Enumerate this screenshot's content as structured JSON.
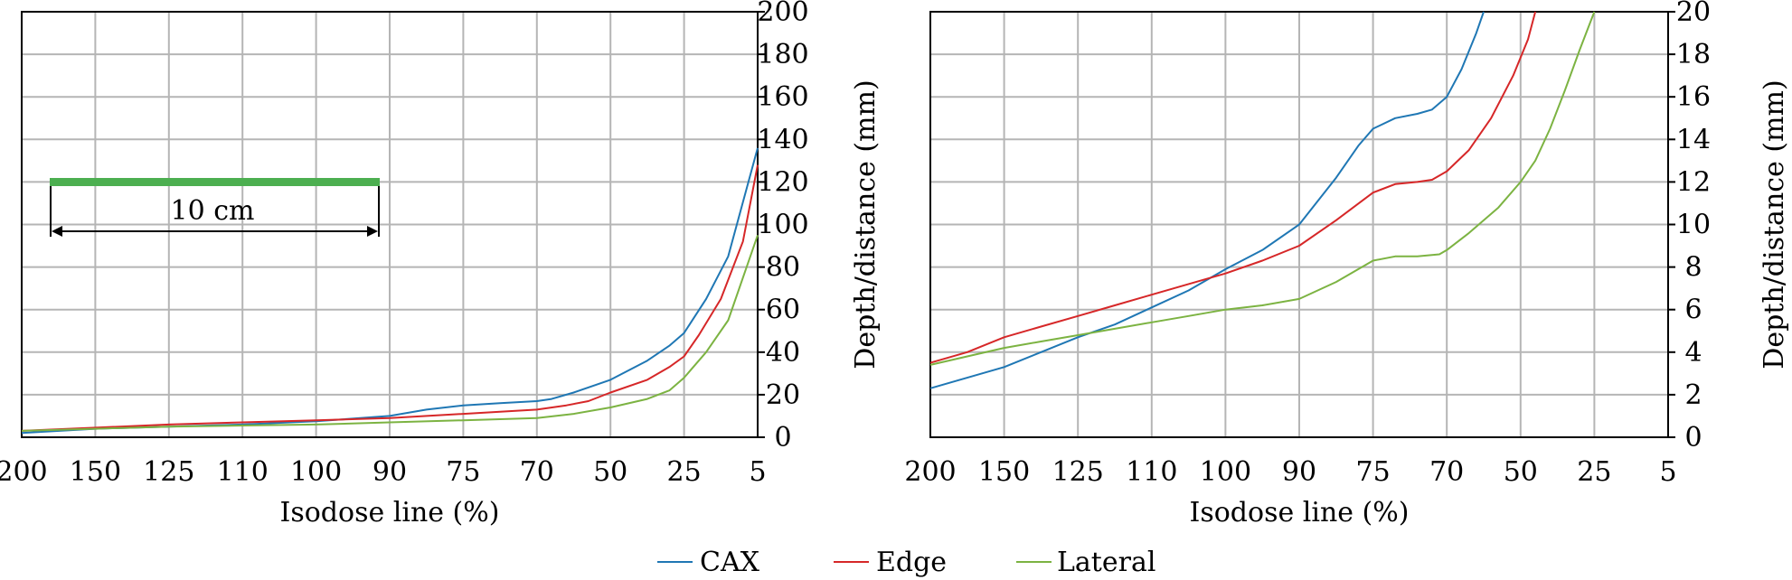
{
  "legend": [
    {
      "name": "CAX",
      "color": "#1f77b4"
    },
    {
      "name": "Edge",
      "color": "#d62728"
    },
    {
      "name": "Lateral",
      "color": "#7cb342"
    }
  ],
  "annotation": {
    "label": "10 cm",
    "bar_color": "#4caf50"
  },
  "chart_data": [
    {
      "type": "line",
      "xlabel": "Isodose line (%)",
      "ylabel": "Depth/distance (mm)",
      "categories": [
        "200",
        "150",
        "125",
        "110",
        "100",
        "90",
        "75",
        "70",
        "50",
        "25",
        "5"
      ],
      "ylim": [
        0,
        200
      ],
      "yticks": [
        "0",
        "20",
        "40",
        "60",
        "80",
        "100",
        "120",
        "140",
        "160",
        "180",
        "200"
      ],
      "grid": true,
      "y_axis_side": "right",
      "series": [
        {
          "name": "CAX",
          "points": [
            [
              0,
              2
            ],
            [
              1,
              4
            ],
            [
              2,
              5
            ],
            [
              3,
              6
            ],
            [
              4,
              7.5
            ],
            [
              5,
              10
            ],
            [
              5.5,
              13
            ],
            [
              6,
              15
            ],
            [
              6.5,
              16
            ],
            [
              7,
              17
            ],
            [
              7.2,
              18
            ],
            [
              7.5,
              21
            ],
            [
              8,
              27
            ],
            [
              8.5,
              36
            ],
            [
              8.8,
              43
            ],
            [
              9,
              49
            ],
            [
              9.3,
              65
            ],
            [
              9.6,
              85
            ],
            [
              10,
              136
            ]
          ]
        },
        {
          "name": "Edge",
          "points": [
            [
              0,
              3
            ],
            [
              1,
              4.5
            ],
            [
              2,
              6
            ],
            [
              3,
              7
            ],
            [
              4,
              8
            ],
            [
              5,
              9
            ],
            [
              6,
              11
            ],
            [
              7,
              13
            ],
            [
              7.4,
              15
            ],
            [
              7.7,
              17
            ],
            [
              8,
              21
            ],
            [
              8.5,
              27
            ],
            [
              8.8,
              33
            ],
            [
              9,
              38
            ],
            [
              9.2,
              48
            ],
            [
              9.5,
              65
            ],
            [
              9.8,
              92
            ],
            [
              10,
              128
            ]
          ]
        },
        {
          "name": "Lateral",
          "points": [
            [
              0,
              3
            ],
            [
              1,
              4
            ],
            [
              2,
              5
            ],
            [
              3,
              5.5
            ],
            [
              4,
              6
            ],
            [
              5,
              7
            ],
            [
              6,
              8
            ],
            [
              7,
              9
            ],
            [
              7.5,
              11
            ],
            [
              8,
              14
            ],
            [
              8.5,
              18
            ],
            [
              8.8,
              22
            ],
            [
              9,
              28
            ],
            [
              9.3,
              40
            ],
            [
              9.6,
              55
            ],
            [
              10,
              95
            ]
          ]
        }
      ]
    },
    {
      "type": "line",
      "xlabel": "Isodose line (%)",
      "ylabel": "Depth/distance (mm)",
      "categories": [
        "200",
        "150",
        "125",
        "110",
        "100",
        "90",
        "75",
        "70",
        "50",
        "25",
        "5"
      ],
      "ylim": [
        0,
        20
      ],
      "yticks": [
        "0",
        "2",
        "4",
        "6",
        "8",
        "10",
        "12",
        "14",
        "16",
        "18",
        "20"
      ],
      "grid": true,
      "y_axis_side": "right",
      "series": [
        {
          "name": "CAX",
          "points": [
            [
              0,
              2.3
            ],
            [
              0.5,
              2.8
            ],
            [
              1,
              3.3
            ],
            [
              1.5,
              4
            ],
            [
              2,
              4.7
            ],
            [
              2.5,
              5.3
            ],
            [
              3,
              6.1
            ],
            [
              3.5,
              6.9
            ],
            [
              4,
              7.9
            ],
            [
              4.5,
              8.8
            ],
            [
              5,
              10
            ],
            [
              5.5,
              12.2
            ],
            [
              5.8,
              13.7
            ],
            [
              6,
              14.5
            ],
            [
              6.3,
              15
            ],
            [
              6.6,
              15.2
            ],
            [
              6.8,
              15.4
            ],
            [
              7,
              16
            ],
            [
              7.2,
              17.3
            ],
            [
              7.4,
              19
            ],
            [
              7.5,
              20
            ]
          ]
        },
        {
          "name": "Edge",
          "points": [
            [
              0,
              3.5
            ],
            [
              0.5,
              4
            ],
            [
              1,
              4.7
            ],
            [
              1.5,
              5.2
            ],
            [
              2,
              5.7
            ],
            [
              2.5,
              6.2
            ],
            [
              3,
              6.7
            ],
            [
              3.5,
              7.2
            ],
            [
              4,
              7.7
            ],
            [
              4.5,
              8.3
            ],
            [
              5,
              9
            ],
            [
              5.5,
              10.2
            ],
            [
              6,
              11.5
            ],
            [
              6.3,
              11.9
            ],
            [
              6.6,
              12
            ],
            [
              6.8,
              12.1
            ],
            [
              7,
              12.5
            ],
            [
              7.3,
              13.5
            ],
            [
              7.6,
              15
            ],
            [
              7.9,
              17
            ],
            [
              8.1,
              18.7
            ],
            [
              8.2,
              20
            ]
          ]
        },
        {
          "name": "Lateral",
          "points": [
            [
              0,
              3.4
            ],
            [
              0.5,
              3.8
            ],
            [
              1,
              4.2
            ],
            [
              1.5,
              4.5
            ],
            [
              2,
              4.8
            ],
            [
              2.5,
              5.1
            ],
            [
              3,
              5.4
            ],
            [
              3.5,
              5.7
            ],
            [
              4,
              6
            ],
            [
              4.5,
              6.2
            ],
            [
              5,
              6.5
            ],
            [
              5.5,
              7.3
            ],
            [
              6,
              8.3
            ],
            [
              6.3,
              8.5
            ],
            [
              6.6,
              8.5
            ],
            [
              6.9,
              8.6
            ],
            [
              7,
              8.8
            ],
            [
              7.3,
              9.6
            ],
            [
              7.7,
              10.8
            ],
            [
              8,
              12
            ],
            [
              8.2,
              13
            ],
            [
              8.4,
              14.5
            ],
            [
              8.6,
              16.3
            ],
            [
              8.8,
              18.2
            ],
            [
              9,
              20
            ]
          ]
        }
      ]
    }
  ]
}
